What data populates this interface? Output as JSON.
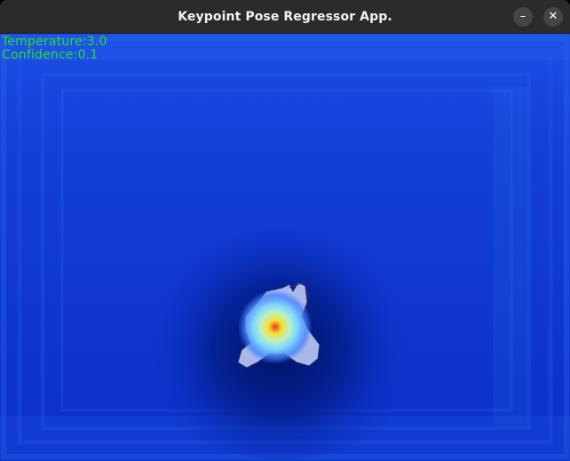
{
  "window": {
    "title": "Keypoint Pose Regressor App.",
    "minimize_glyph": "–",
    "close_glyph": "✕"
  },
  "overlay": {
    "temperature_text": "Temperature:3.0",
    "confidence_text": "Confidence:0.1"
  },
  "heatmap": {
    "colormap": "jet",
    "background_color": "#0b2fc8",
    "peak_color": "#e53a2a",
    "text_color": "#22e022"
  },
  "icons": {
    "minimize": "minimize-icon",
    "close": "close-icon"
  }
}
